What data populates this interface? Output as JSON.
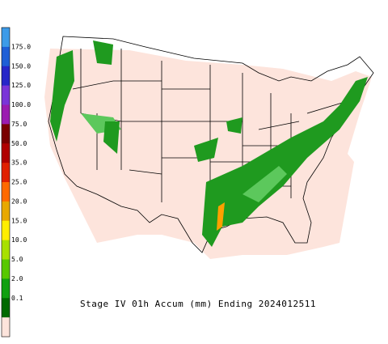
{
  "map": {
    "title": "Stage IV 01h Accum (mm) Ending 2024012511",
    "legend": {
      "labels": [
        "175.0",
        "150.0",
        "125.0",
        "100.0",
        "75.0",
        "50.0",
        "35.0",
        "25.0",
        "20.0",
        "15.0",
        "10.0",
        "5.0",
        "2.0",
        "0.1"
      ],
      "colors": [
        "#3d9be8",
        "#1f5fd6",
        "#2727c8",
        "#7a35d8",
        "#9b1cb0",
        "#7a0000",
        "#b00000",
        "#e02000",
        "#ff6a00",
        "#e8a800",
        "#ffee00",
        "#a8e000",
        "#58c800",
        "#10a010",
        "#006a00",
        "#fde4dc"
      ]
    }
  }
}
